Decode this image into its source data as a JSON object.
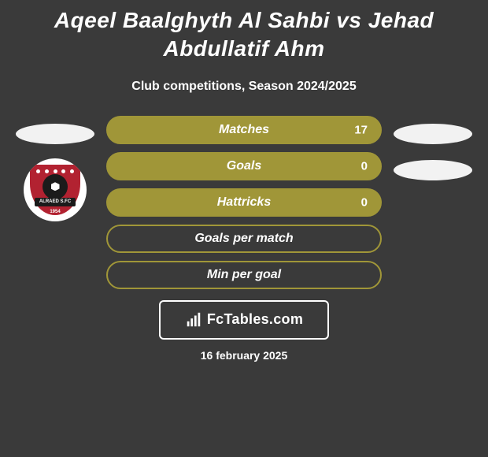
{
  "title": "Aqeel Baalghyth Al Sahbi vs Jehad Abdullatif Ahm",
  "subtitle": "Club competitions, Season 2024/2025",
  "stats": [
    {
      "label": "Matches",
      "value": "17",
      "filled": true
    },
    {
      "label": "Goals",
      "value": "0",
      "filled": true
    },
    {
      "label": "Hattricks",
      "value": "0",
      "filled": true
    },
    {
      "label": "Goals per match",
      "value": "",
      "filled": false
    },
    {
      "label": "Min per goal",
      "value": "",
      "filled": false
    }
  ],
  "bar_fill_color": "#a09638",
  "bar_border_color": "#a09638",
  "oval_color": "#f2f2f2",
  "brand": "FcTables.com",
  "date": "16 february 2025",
  "club_badge": {
    "name": "ALRAED S.FC",
    "year": "1954",
    "shield_color": "#b22231"
  }
}
